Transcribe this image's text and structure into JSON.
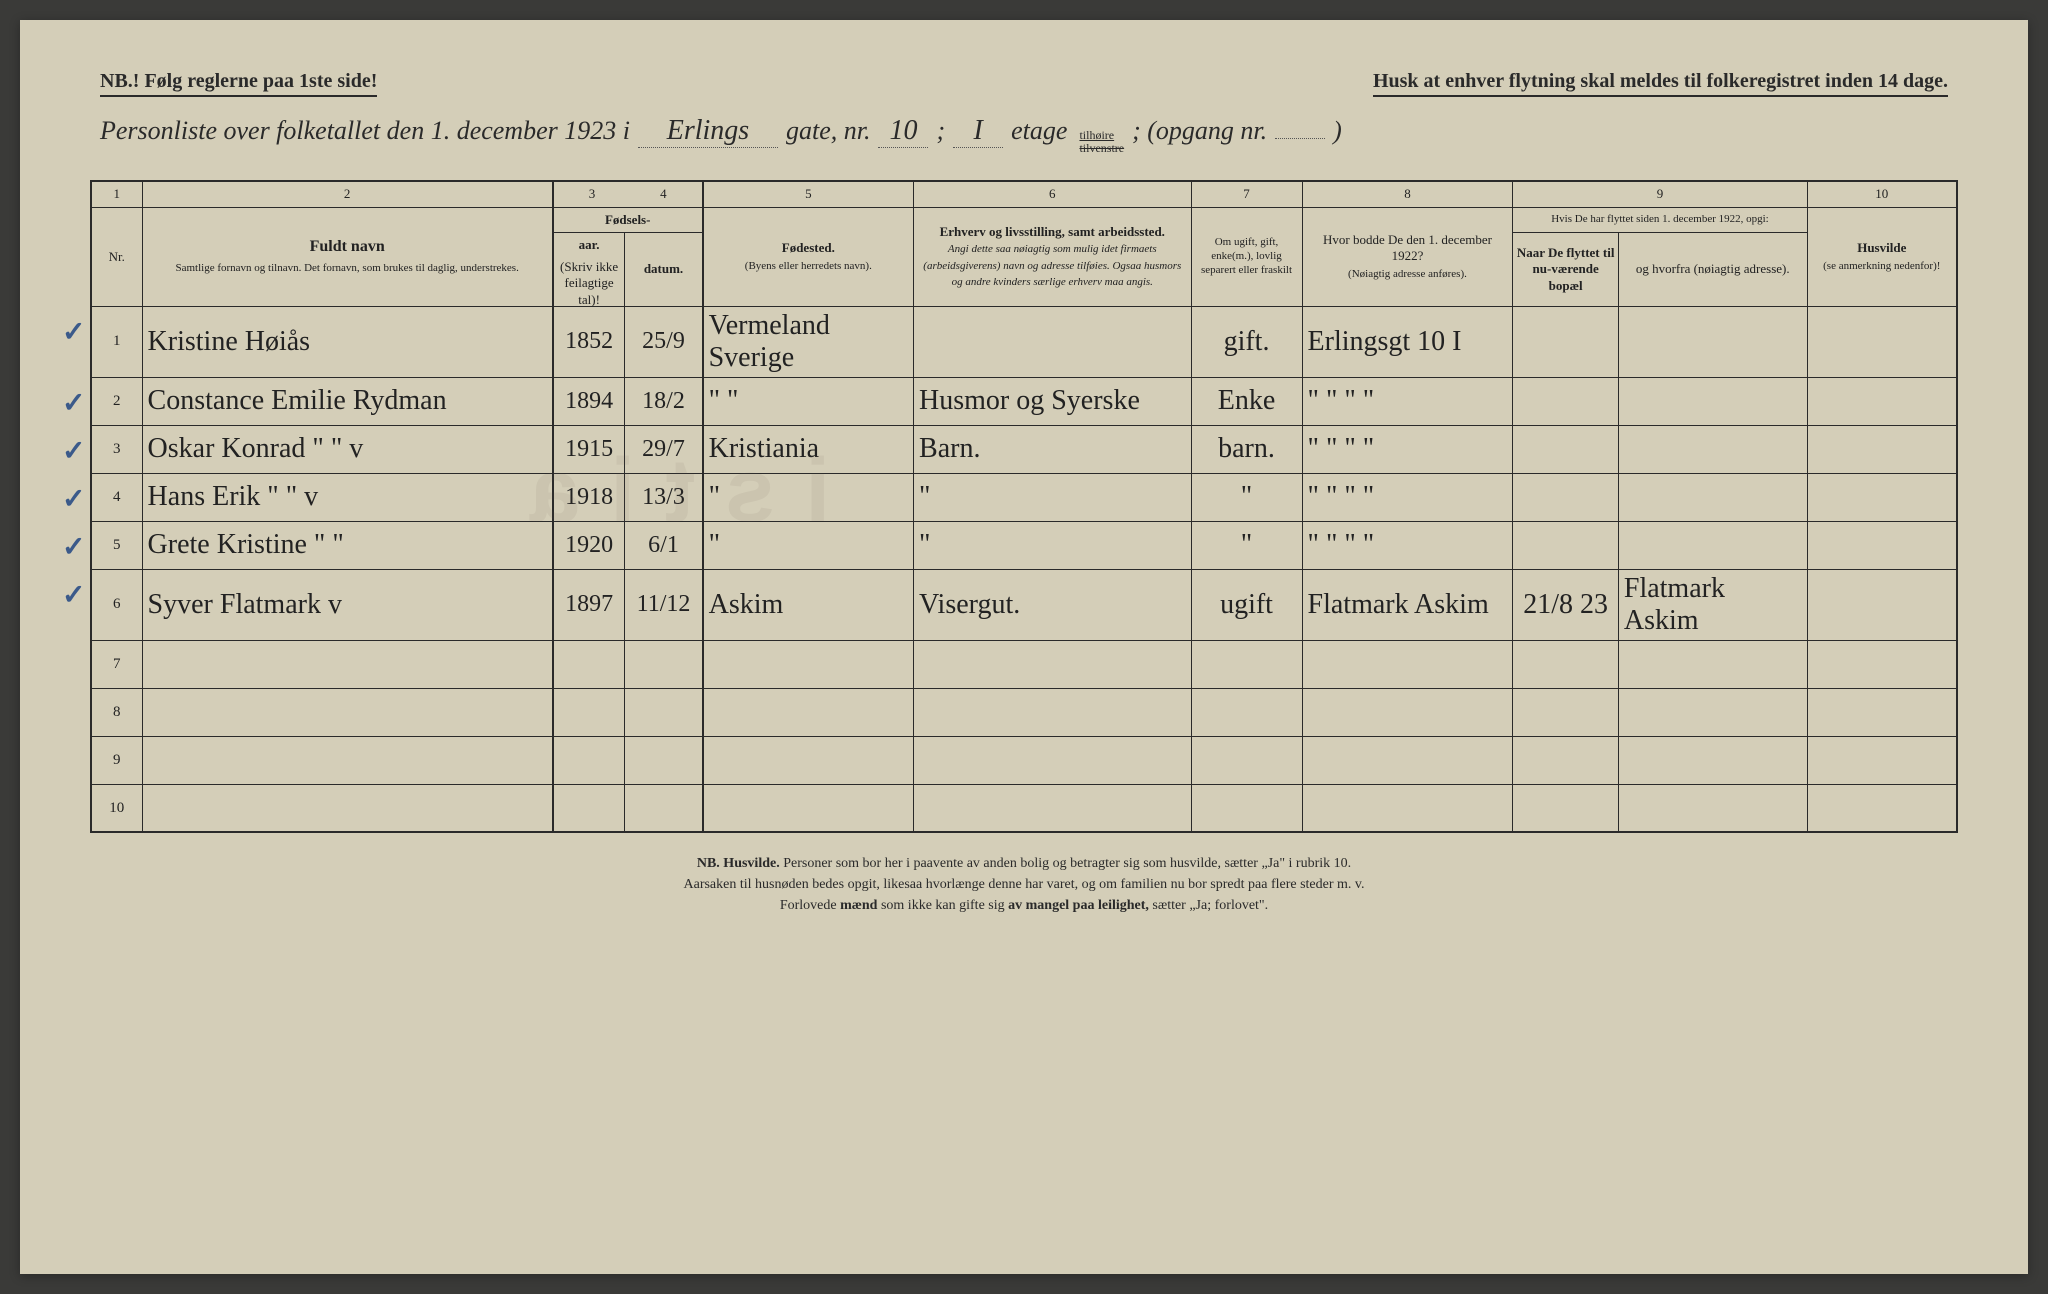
{
  "header": {
    "nb_left": "NB.! Følg reglerne paa 1ste side!",
    "nb_right": "Husk at enhver flytning skal meldes til folkeregistret inden 14 dage."
  },
  "title": {
    "prefix": "Personliste over folketallet den 1. december 1923 i",
    "street": "Erlings",
    "gate": "gate, nr.",
    "house_nr": "10",
    "semicolon": ";",
    "etage_val": "I",
    "etage_word": "etage",
    "etage_opt_top": "tilhøire",
    "etage_opt_bottom": "tilvenstre",
    "opgang": "; (opgang nr.",
    "opgang_val": "",
    "close": ")"
  },
  "columns": {
    "n1": "1",
    "n2": "2",
    "n3": "3",
    "n4": "4",
    "n5": "5",
    "n6": "6",
    "n7": "7",
    "n8": "8",
    "n9": "9",
    "n10": "10",
    "nr": "Nr.",
    "fuldt_navn_title": "Fuldt navn",
    "fuldt_navn_sub": "Samtlige fornavn og tilnavn. Det fornavn, som brukes til daglig, understrekes.",
    "fodsels": "Fødsels-",
    "aar": "aar.",
    "datum": "datum.",
    "fodsels_note": "(Skriv ikke feilagtige tal)!",
    "fodested": "Fødested.",
    "fodested_sub": "(Byens eller herredets navn).",
    "erhverv_title": "Erhverv og livsstilling, samt arbeidssted.",
    "erhverv_sub": "Angi dette saa nøiagtig som mulig idet firmaets (arbeidsgiverens) navn og adresse tilføies. Ogsaa husmors og andre kvinders særlige erhverv maa angis.",
    "sivilstand": "Om ugift, gift, enke(m.), lovlig separert eller fraskilt",
    "hvor_bodde": "Hvor bodde De den 1. december 1922?",
    "hvor_bodde_sub": "(Nøiagtig adresse anføres).",
    "flyttet_title": "Hvis De har flyttet siden 1. december 1922, opgi:",
    "naar": "Naar De flyttet til nu-værende bopæl",
    "hvorfra": "og hvorfra (nøiagtig adresse).",
    "husvilde": "Husvilde",
    "husvilde_sub": "(se anmerkning nedenfor)!"
  },
  "column_widths": {
    "nr": 46,
    "navn": 370,
    "aar": 65,
    "datum": 70,
    "fodested": 190,
    "erhverv": 250,
    "sivilstand": 100,
    "hvor_bodde": 190,
    "naar": 95,
    "hvorfra": 170,
    "husvilde": 135
  },
  "rows": [
    {
      "nr": "1",
      "navn": "Kristine Høiås",
      "aar": "1852",
      "datum": "25/9",
      "fodested": "Vermeland Sverige",
      "erhverv": "",
      "sivil": "gift.",
      "bodde": "Erlingsgt 10 I",
      "naar": "",
      "hvorfra": "",
      "husvilde": ""
    },
    {
      "nr": "2",
      "navn": "Constance Emilie Rydman",
      "aar": "1894",
      "datum": "18/2",
      "fodested": "\"   \"",
      "erhverv": "Husmor og Syerske",
      "sivil": "Enke",
      "bodde": "\"   \"   \"   \"",
      "naar": "",
      "hvorfra": "",
      "husvilde": ""
    },
    {
      "nr": "3",
      "navn": "Oskar Konrad   \"   \"  v",
      "aar": "1915",
      "datum": "29/7",
      "fodested": "Kristiania",
      "erhverv": "Barn.",
      "sivil": "barn.",
      "bodde": "\"   \"   \"   \"",
      "naar": "",
      "hvorfra": "",
      "husvilde": ""
    },
    {
      "nr": "4",
      "navn": "Hans Erik   \"   \"  v",
      "aar": "1918",
      "datum": "13/3",
      "fodested": "\"",
      "erhverv": "\"",
      "sivil": "\"",
      "bodde": "\"   \"   \"   \"",
      "naar": "",
      "hvorfra": "",
      "husvilde": ""
    },
    {
      "nr": "5",
      "navn": "Grete Kristine   \"   \"",
      "aar": "1920",
      "datum": "6/1",
      "fodested": "\"",
      "erhverv": "\"",
      "sivil": "\"",
      "bodde": "\"   \"   \"   \"",
      "naar": "",
      "hvorfra": "",
      "husvilde": ""
    },
    {
      "nr": "6",
      "navn": "Syver Flatmark  v",
      "aar": "1897",
      "datum": "11/12",
      "fodested": "Askim",
      "erhverv": "Visergut.",
      "sivil": "ugift",
      "bodde": "Flatmark Askim",
      "naar": "21/8 23",
      "hvorfra": "Flatmark Askim",
      "husvilde": ""
    },
    {
      "nr": "7",
      "navn": "",
      "aar": "",
      "datum": "",
      "fodested": "",
      "erhverv": "",
      "sivil": "",
      "bodde": "",
      "naar": "",
      "hvorfra": "",
      "husvilde": ""
    },
    {
      "nr": "8",
      "navn": "",
      "aar": "",
      "datum": "",
      "fodested": "",
      "erhverv": "",
      "sivil": "",
      "bodde": "",
      "naar": "",
      "hvorfra": "",
      "husvilde": ""
    },
    {
      "nr": "9",
      "navn": "",
      "aar": "",
      "datum": "",
      "fodested": "",
      "erhverv": "",
      "sivil": "",
      "bodde": "",
      "naar": "",
      "hvorfra": "",
      "husvilde": ""
    },
    {
      "nr": "10",
      "navn": "",
      "aar": "",
      "datum": "",
      "fodested": "",
      "erhverv": "",
      "sivil": "",
      "bodde": "",
      "naar": "",
      "hvorfra": "",
      "husvilde": ""
    }
  ],
  "checkmarks": [
    true,
    true,
    true,
    true,
    true,
    true,
    false,
    false,
    false,
    false
  ],
  "footnote": {
    "line1_a": "NB. Husvilde.",
    "line1_b": " Personer som bor her i paavente av anden bolig og betragter sig som husvilde, sætter „Ja\" i rubrik 10.",
    "line2": "Aarsaken til husnøden bedes opgit, likesaa hvorlænge denne har varet, og om familien nu bor spredt paa flere steder m. v.",
    "line3_a": "Forlovede ",
    "line3_b": "mænd",
    "line3_c": " som ikke kan gifte sig ",
    "line3_d": "av mangel paa leilighet,",
    "line3_e": " sætter „Ja; forlovet\"."
  },
  "colors": {
    "paper": "#d4ceb8",
    "ink": "#2a2a2a",
    "handwriting": "#3a352a",
    "checkmark": "#3b5a8a",
    "backdrop": "#3a3a38"
  }
}
